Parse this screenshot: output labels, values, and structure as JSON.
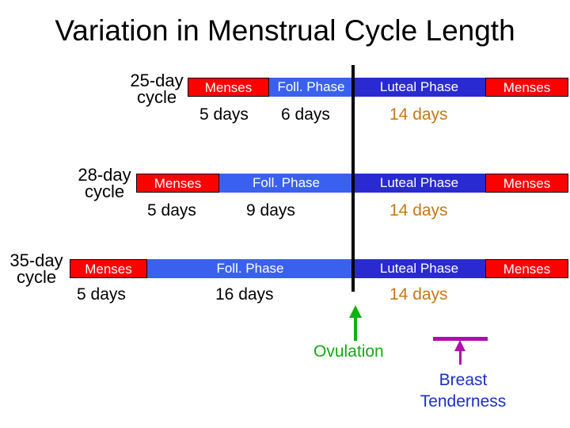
{
  "title": "Variation in Menstrual Cycle Length",
  "cycles": {
    "c25": {
      "line1": "25-day",
      "line2": "cycle",
      "menses": "Menses",
      "foll": "Foll. Phase",
      "luteal": "Luteal Phase",
      "menses2": "Menses",
      "menses_days": "5 days",
      "foll_days": "6 days",
      "luteal_days": "14 days"
    },
    "c28": {
      "line1": "28-day",
      "line2": "cycle",
      "menses": "Menses",
      "foll": "Foll. Phase",
      "luteal": "Luteal Phase",
      "menses2": "Menses",
      "menses_days": "5 days",
      "foll_days": "9 days",
      "luteal_days": "14 days"
    },
    "c35": {
      "line1": "35-day",
      "line2": "cycle",
      "menses": "Menses",
      "foll": "Foll. Phase",
      "luteal": "Luteal Phase",
      "menses2": "Menses",
      "menses_days": "5 days",
      "foll_days": "16 days",
      "luteal_days": "14 days"
    }
  },
  "annotations": {
    "ovulation": "Ovulation",
    "breast_line1": "Breast",
    "breast_line2": "Tenderness"
  },
  "colors": {
    "menses": "#ff0000",
    "follicular": "#3a60f0",
    "luteal": "#2a2ad2",
    "luteal_days_text": "#c47818",
    "ovulation": "#10b010",
    "breast_tenderness_marker": "#b20cb2",
    "breast_tenderness_text": "#1a2fc4"
  }
}
